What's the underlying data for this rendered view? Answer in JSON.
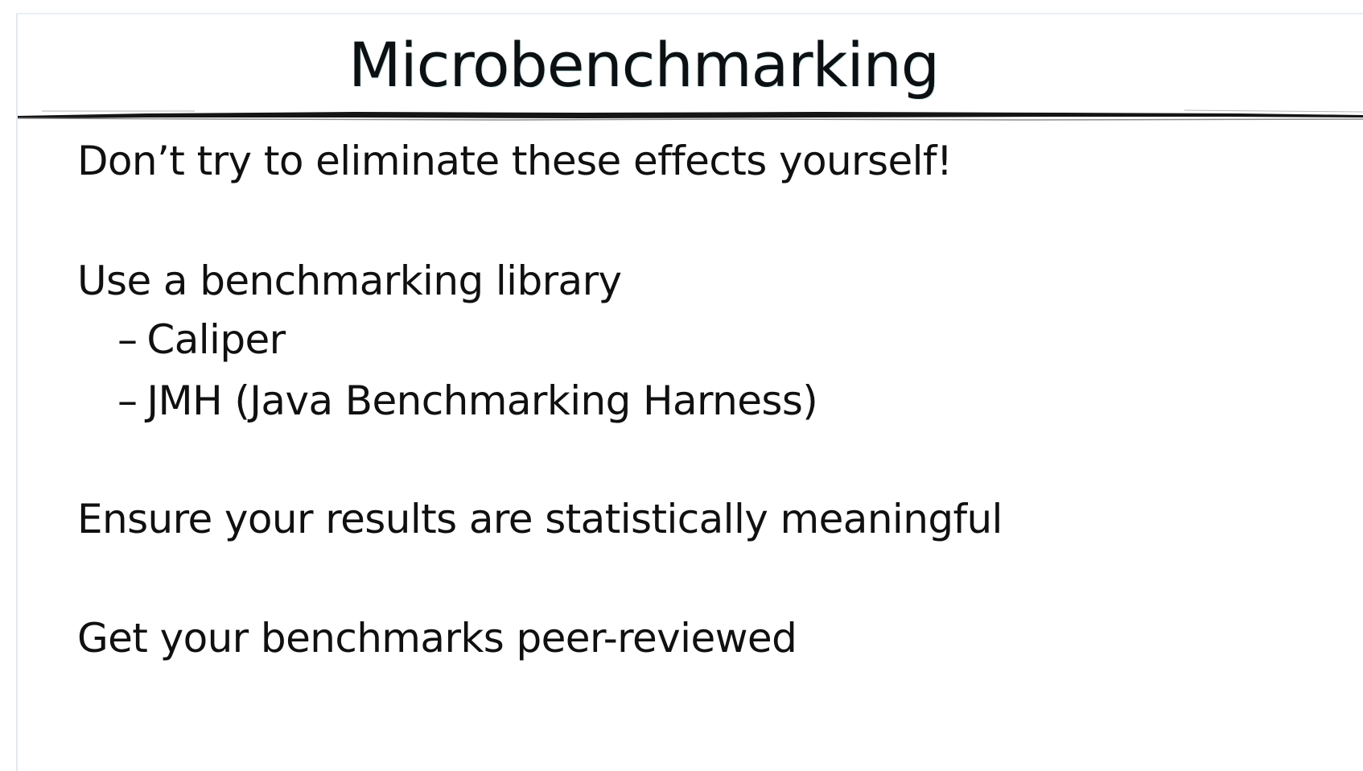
{
  "slide": {
    "title": "Microbenchmarking",
    "bullets": {
      "b1": "Don’t try to eliminate these effects yourself!",
      "b2": "Use a benchmarking library",
      "sub1": "Caliper",
      "sub2": "JMH (Java Benchmarking Harness)",
      "b3": "Ensure your results are statistically meaningful",
      "b4": "Get your benchmarks peer-reviewed"
    },
    "sub_marker": "–"
  }
}
